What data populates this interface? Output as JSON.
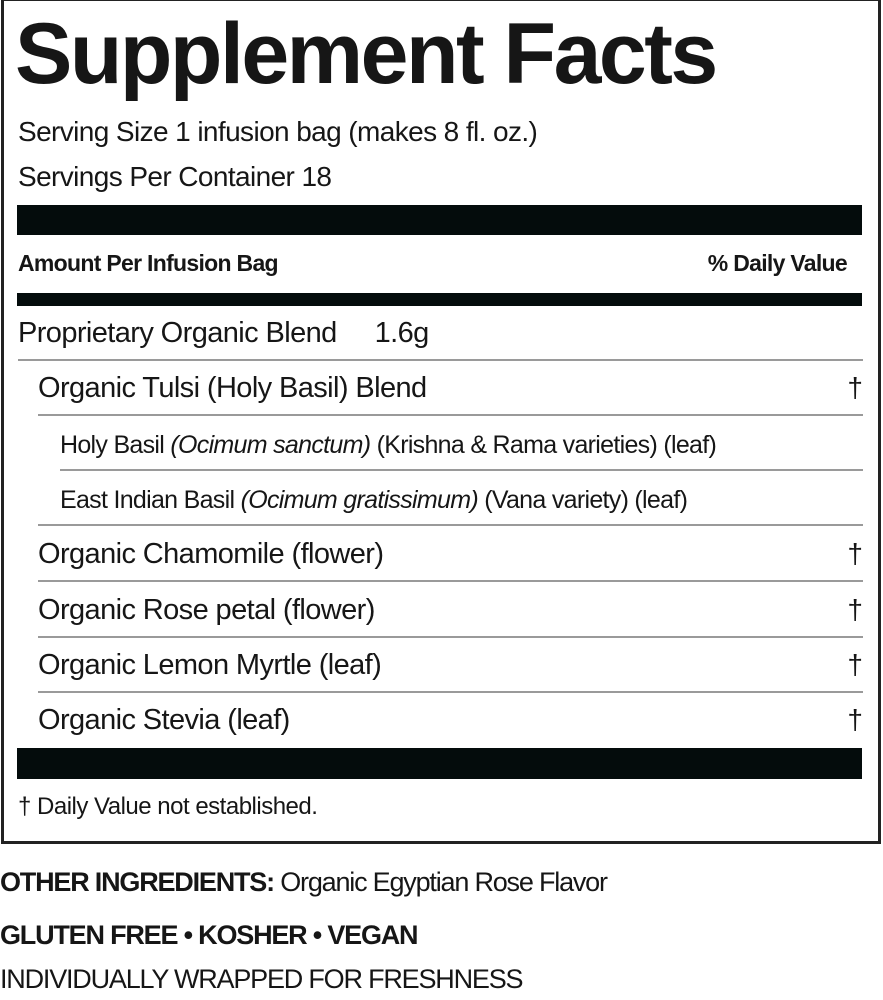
{
  "title": "Supplement Facts",
  "serving_size": "Serving Size 1 infusion bag (makes 8 fl. oz.)",
  "servings_per_container": "Servings Per Container 18",
  "header": {
    "amount_label": "Amount Per Infusion Bag",
    "dv_label": "% Daily Value"
  },
  "blend": {
    "name": "Proprietary Organic Blend",
    "amount": "1.6g"
  },
  "ingredients": [
    {
      "name": "Organic Tulsi (Holy Basil) Blend",
      "dv": "†"
    },
    {
      "name": "Holy Basil ",
      "latin": "(Ocimum sanctum)",
      "detail": " (Krishna & Rama varieties) (leaf)"
    },
    {
      "name": "East Indian Basil ",
      "latin": "(Ocimum gratissimum)",
      "detail": " (Vana variety) (leaf)"
    },
    {
      "name": "Organic Chamomile (flower)",
      "dv": "†"
    },
    {
      "name": "Organic Rose petal (flower)",
      "dv": "†"
    },
    {
      "name": "Organic Lemon Myrtle (leaf)",
      "dv": "†"
    },
    {
      "name": "Organic Stevia (leaf)",
      "dv": "†"
    }
  ],
  "footnote": "† Daily Value not established.",
  "other_ingredients": {
    "label": "OTHER INGREDIENTS:",
    "value": " Organic Egyptian Rose Flavor"
  },
  "claims": "GLUTEN FREE • KOSHER • VEGAN",
  "packaging": "INDIVIDUALLY WRAPPED FOR FRESHNESS"
}
